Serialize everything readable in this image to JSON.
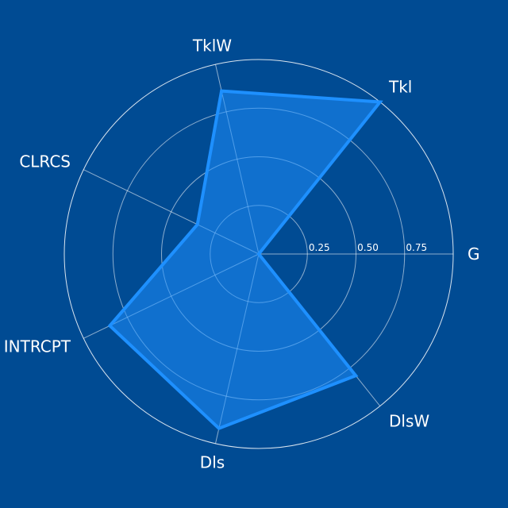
{
  "colors": {
    "background": "#004B93",
    "grid": "#FFFFFF",
    "fill": "#1E90FF",
    "line": "#1E90FF",
    "text": "#FFFFFF"
  },
  "chart_data": {
    "type": "radar",
    "categories": [
      "G",
      "Tkl",
      "TklW",
      "CLRCS",
      "INTRCPT",
      "Dls",
      "DlsW"
    ],
    "series": [
      {
        "values": [
          0.0,
          1.0,
          0.86,
          0.35,
          0.85,
          0.92,
          0.8
        ]
      }
    ],
    "rlim": [
      0,
      1
    ],
    "radial_ticks": [
      "0.25",
      "0.50",
      "0.75"
    ],
    "radial_tick_values": [
      0.25,
      0.5,
      0.75
    ],
    "grid": true,
    "legend": "none"
  }
}
